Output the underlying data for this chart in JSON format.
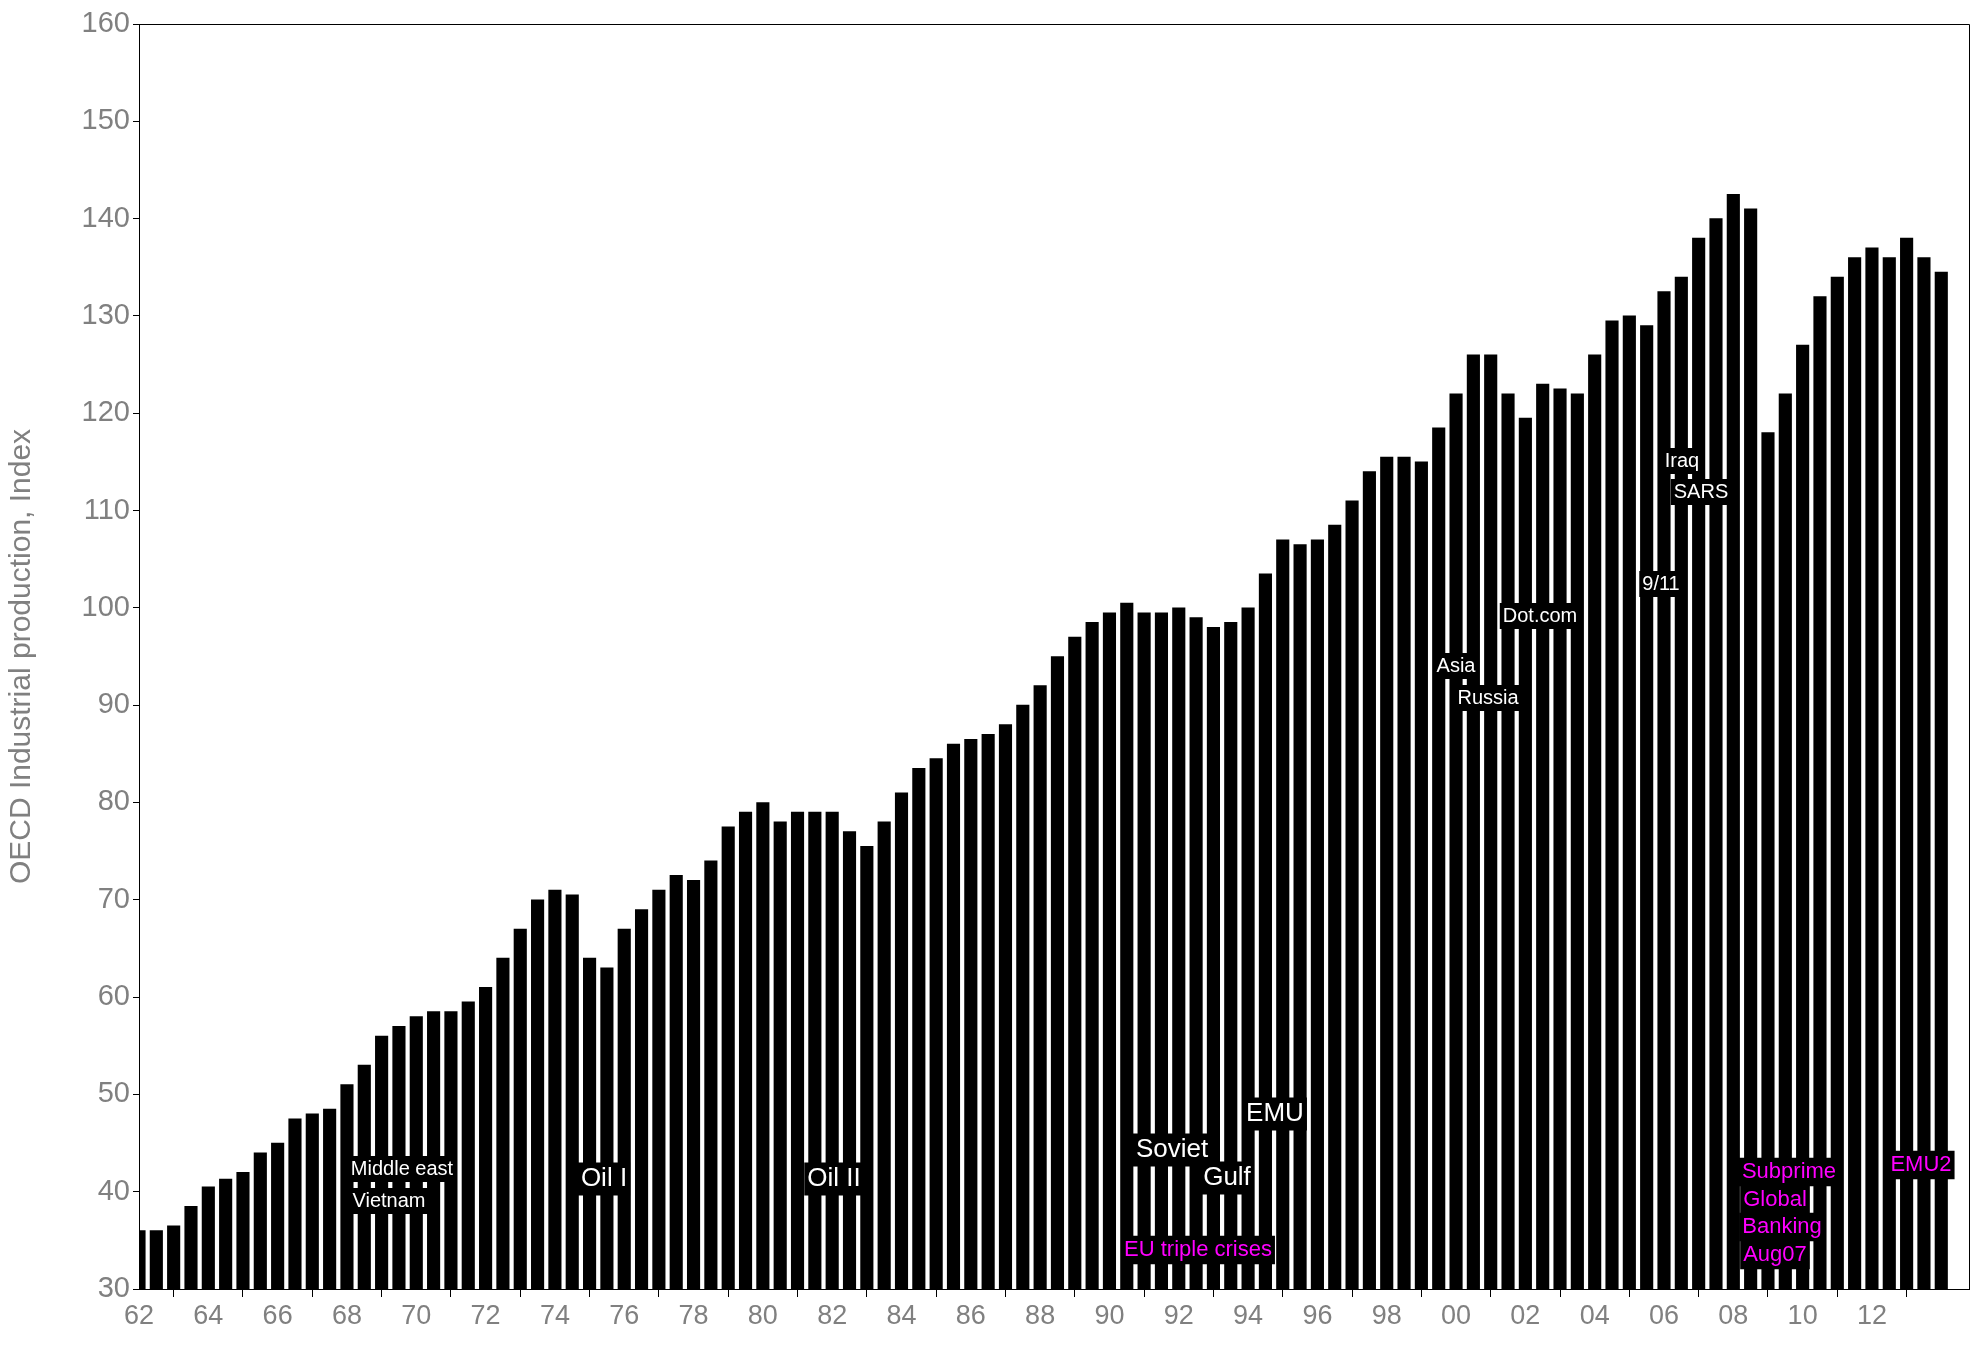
{
  "chart_data": {
    "type": "bar",
    "ylabel": "OECD Industrial production, Index",
    "xlim": [
      1962,
      2014.8
    ],
    "ylim": [
      30,
      160
    ],
    "xticks": [
      {
        "value": 1962,
        "label": "62"
      },
      {
        "value": 1964,
        "label": "64"
      },
      {
        "value": 1966,
        "label": "66"
      },
      {
        "value": 1968,
        "label": "68"
      },
      {
        "value": 1970,
        "label": "70"
      },
      {
        "value": 1972,
        "label": "72"
      },
      {
        "value": 1974,
        "label": "74"
      },
      {
        "value": 1976,
        "label": "76"
      },
      {
        "value": 1978,
        "label": "78"
      },
      {
        "value": 1980,
        "label": "80"
      },
      {
        "value": 1982,
        "label": "82"
      },
      {
        "value": 1984,
        "label": "84"
      },
      {
        "value": 1986,
        "label": "86"
      },
      {
        "value": 1988,
        "label": "88"
      },
      {
        "value": 1990,
        "label": "90"
      },
      {
        "value": 1992,
        "label": "92"
      },
      {
        "value": 1994,
        "label": "94"
      },
      {
        "value": 1996,
        "label": "96"
      },
      {
        "value": 1998,
        "label": "98"
      },
      {
        "value": 2000,
        "label": "00"
      },
      {
        "value": 2002,
        "label": "02"
      },
      {
        "value": 2004,
        "label": "04"
      },
      {
        "value": 2006,
        "label": "06"
      },
      {
        "value": 2008,
        "label": "08"
      },
      {
        "value": 2010,
        "label": "10"
      },
      {
        "value": 2012,
        "label": "12"
      }
    ],
    "yticks": [
      30,
      40,
      50,
      60,
      70,
      80,
      90,
      100,
      110,
      120,
      130,
      140,
      150,
      160
    ],
    "grid": false,
    "legend": false,
    "series": [
      {
        "color": "#000000",
        "x": [
          1962,
          1962.5,
          1963,
          1963.5,
          1964,
          1964.5,
          1965,
          1965.5,
          1966,
          1966.5,
          1967,
          1967.5,
          1968,
          1968.5,
          1969,
          1969.5,
          1970,
          1970.5,
          1971,
          1971.5,
          1972,
          1972.5,
          1973,
          1973.5,
          1974,
          1974.5,
          1975,
          1975.5,
          1976,
          1976.5,
          1977,
          1977.5,
          1978,
          1978.5,
          1979,
          1979.5,
          1980,
          1980.5,
          1981,
          1981.5,
          1982,
          1982.5,
          1983,
          1983.5,
          1984,
          1984.5,
          1985,
          1985.5,
          1986,
          1986.5,
          1987,
          1987.5,
          1988,
          1988.5,
          1989,
          1989.5,
          1990,
          1990.5,
          1991,
          1991.5,
          1992,
          1992.5,
          1993,
          1993.5,
          1994,
          1994.5,
          1995,
          1995.5,
          1996,
          1996.5,
          1997,
          1997.5,
          1998,
          1998.5,
          1999,
          1999.5,
          2000,
          2000.5,
          2001,
          2001.5,
          2002,
          2002.5,
          2003,
          2003.5,
          2004,
          2004.5,
          2005,
          2005.5,
          2006,
          2006.5,
          2007,
          2007.5,
          2008,
          2008.5,
          2009,
          2009.5,
          2010,
          2010.5,
          2011,
          2011.5,
          2012,
          2012.5,
          2013,
          2013.5,
          2014
        ],
        "values": [
          36,
          36,
          36.5,
          38.5,
          40.5,
          41.3,
          42,
          44,
          45,
          47.5,
          48,
          48.5,
          51,
          53,
          56,
          57,
          58,
          58.5,
          58.5,
          59.5,
          61,
          64,
          67,
          70,
          71,
          70.5,
          64,
          63,
          67,
          69,
          71,
          72.5,
          72,
          74,
          77.5,
          79,
          80,
          78,
          79,
          79,
          79,
          77,
          75.5,
          78,
          81,
          83.5,
          84.5,
          86,
          86.5,
          87,
          88,
          90,
          92,
          95,
          97,
          98.5,
          99.5,
          100.5,
          99.5,
          99.5,
          100,
          99,
          98,
          98.5,
          100,
          103.5,
          107,
          106.5,
          107,
          108.5,
          111,
          114,
          115.5,
          115.5,
          115,
          118.5,
          122,
          126,
          126,
          122,
          119.5,
          123,
          122.5,
          122,
          126,
          129.5,
          130,
          129,
          132.5,
          134,
          138,
          140,
          142.5,
          141,
          118,
          122,
          127,
          132,
          134,
          136,
          137,
          136,
          138,
          136,
          134.5
        ]
      }
    ],
    "annotations": [
      "Middle east",
      "Vietnam",
      "Oil I",
      "Oil II",
      "Soviet",
      "Gulf",
      "EMU",
      "Asia",
      "Russia",
      "Dot.com",
      "9/11",
      "Iraq",
      "SARS",
      "EU triple crises",
      "Subprime",
      "Global",
      "Banking",
      "Aug07",
      "EMU2"
    ]
  }
}
